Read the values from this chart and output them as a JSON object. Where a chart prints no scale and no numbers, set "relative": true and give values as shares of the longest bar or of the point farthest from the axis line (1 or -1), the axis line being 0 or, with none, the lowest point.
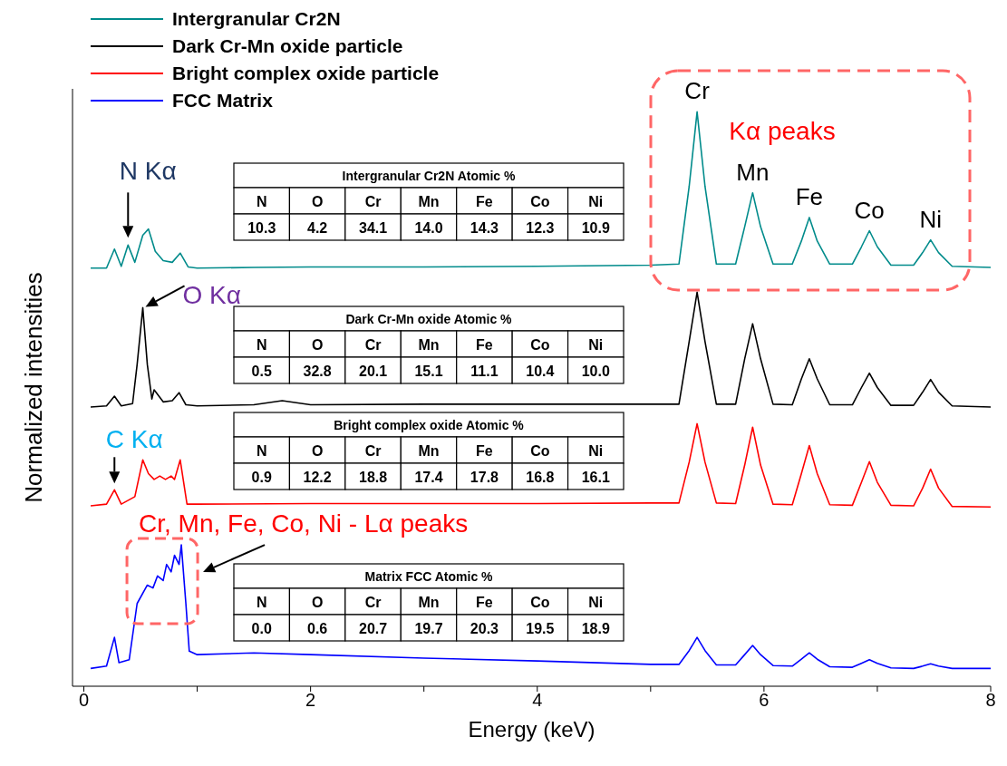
{
  "chart_data": {
    "type": "line",
    "relative": true,
    "xlabel": "Energy (keV)",
    "ylabel": "Normalized intensities",
    "legend": "top left",
    "xlim": [
      -0.1,
      8
    ],
    "xticks": [
      0,
      {
        "value": 1,
        "label": null
      },
      2,
      {
        "value": 3,
        "label": null
      },
      4,
      {
        "value": 5,
        "label": null
      },
      6,
      {
        "value": 7,
        "label": null
      },
      8
    ],
    "series": [
      {
        "name": "Intergranular Cr2N",
        "color": "#008b8b",
        "x": [
          0.06,
          0.2,
          0.27,
          0.33,
          0.39,
          0.45,
          0.52,
          0.57,
          0.63,
          0.7,
          0.78,
          0.85,
          0.92,
          1.0,
          1.5,
          2.0,
          3.0,
          4.0,
          5.0,
          5.25,
          5.34,
          5.41,
          5.48,
          5.58,
          5.75,
          5.83,
          5.9,
          5.97,
          6.08,
          6.25,
          6.33,
          6.4,
          6.47,
          6.58,
          6.78,
          6.86,
          6.93,
          7.0,
          7.12,
          7.32,
          7.4,
          7.47,
          7.54,
          7.66,
          8.0
        ],
        "values": [
          0.728,
          0.728,
          0.761,
          0.731,
          0.768,
          0.738,
          0.785,
          0.796,
          0.757,
          0.741,
          0.738,
          0.754,
          0.73,
          0.728,
          0.729,
          0.73,
          0.73,
          0.731,
          0.733,
          0.735,
          0.87,
          1.0,
          0.87,
          0.735,
          0.735,
          0.8,
          0.859,
          0.8,
          0.735,
          0.735,
          0.775,
          0.816,
          0.775,
          0.735,
          0.735,
          0.765,
          0.793,
          0.765,
          0.733,
          0.733,
          0.755,
          0.777,
          0.755,
          0.731,
          0.729
        ]
      },
      {
        "name": "Dark Cr-Mn oxide particle",
        "color": "#000000",
        "x": [
          0.06,
          0.2,
          0.27,
          0.33,
          0.43,
          0.47,
          0.52,
          0.56,
          0.6,
          0.62,
          0.7,
          0.78,
          0.84,
          0.9,
          1.0,
          1.5,
          1.75,
          2.0,
          3.0,
          4.0,
          5.0,
          5.25,
          5.34,
          5.41,
          5.48,
          5.58,
          5.75,
          5.83,
          5.9,
          5.97,
          6.08,
          6.25,
          6.33,
          6.4,
          6.47,
          6.58,
          6.78,
          6.86,
          6.93,
          7.0,
          7.12,
          7.32,
          7.4,
          7.47,
          7.54,
          7.66,
          8.0
        ],
        "values": [
          0.486,
          0.488,
          0.505,
          0.488,
          0.492,
          0.56,
          0.659,
          0.56,
          0.5,
          0.516,
          0.495,
          0.497,
          0.511,
          0.49,
          0.488,
          0.49,
          0.497,
          0.49,
          0.491,
          0.491,
          0.491,
          0.491,
          0.6,
          0.686,
          0.6,
          0.491,
          0.491,
          0.57,
          0.631,
          0.57,
          0.491,
          0.49,
          0.535,
          0.57,
          0.535,
          0.49,
          0.49,
          0.52,
          0.545,
          0.52,
          0.489,
          0.489,
          0.512,
          0.534,
          0.512,
          0.488,
          0.486
        ]
      },
      {
        "name": "Bright complex oxide particle",
        "color": "#ff0000",
        "x": [
          0.06,
          0.2,
          0.27,
          0.33,
          0.45,
          0.52,
          0.57,
          0.62,
          0.67,
          0.72,
          0.77,
          0.8,
          0.85,
          0.91,
          1.0,
          2.0,
          3.0,
          4.0,
          5.0,
          5.25,
          5.34,
          5.41,
          5.48,
          5.58,
          5.75,
          5.83,
          5.9,
          5.97,
          6.08,
          6.25,
          6.33,
          6.4,
          6.47,
          6.58,
          6.78,
          6.86,
          6.93,
          7.0,
          7.12,
          7.32,
          7.4,
          7.47,
          7.54,
          7.66,
          8.0
        ],
        "values": [
          0.314,
          0.317,
          0.342,
          0.317,
          0.33,
          0.394,
          0.37,
          0.36,
          0.366,
          0.36,
          0.366,
          0.36,
          0.394,
          0.317,
          0.317,
          0.318,
          0.318,
          0.318,
          0.319,
          0.319,
          0.39,
          0.457,
          0.39,
          0.319,
          0.318,
          0.385,
          0.451,
          0.385,
          0.317,
          0.316,
          0.37,
          0.419,
          0.37,
          0.316,
          0.315,
          0.355,
          0.391,
          0.355,
          0.315,
          0.314,
          0.345,
          0.378,
          0.345,
          0.313,
          0.312
        ]
      },
      {
        "name": "FCC Matrix",
        "color": "#0000ff",
        "x": [
          0.06,
          0.2,
          0.27,
          0.31,
          0.4,
          0.47,
          0.56,
          0.61,
          0.65,
          0.7,
          0.73,
          0.77,
          0.8,
          0.84,
          0.86,
          0.9,
          0.93,
          1.0,
          1.5,
          2.0,
          3.0,
          4.0,
          5.0,
          5.25,
          5.34,
          5.41,
          5.48,
          5.58,
          5.75,
          5.83,
          5.9,
          5.97,
          6.08,
          6.25,
          6.33,
          6.4,
          6.47,
          6.58,
          6.78,
          6.86,
          6.93,
          7.0,
          7.12,
          7.32,
          7.4,
          7.47,
          7.54,
          7.66,
          8.0
        ],
        "values": [
          0.031,
          0.035,
          0.085,
          0.041,
          0.046,
          0.144,
          0.176,
          0.171,
          0.192,
          0.184,
          0.212,
          0.199,
          0.228,
          0.212,
          0.246,
          0.144,
          0.061,
          0.055,
          0.058,
          0.055,
          0.049,
          0.044,
          0.038,
          0.038,
          0.062,
          0.085,
          0.062,
          0.037,
          0.037,
          0.055,
          0.071,
          0.055,
          0.036,
          0.035,
          0.047,
          0.058,
          0.047,
          0.034,
          0.033,
          0.04,
          0.046,
          0.04,
          0.032,
          0.031,
          0.035,
          0.039,
          0.035,
          0.031,
          0.031
        ]
      }
    ],
    "annotations": [
      {
        "text": "N Kα",
        "x": 0.39,
        "y": 0.768
      },
      {
        "text": "O Kα",
        "x": 0.52,
        "y": 0.659
      },
      {
        "text": "C Kα",
        "x": 0.27,
        "y": 0.342
      },
      {
        "text": "Cr, Mn, Fe, Co, Ni - Lα peaks",
        "x": 0.86,
        "y": 0.246
      },
      {
        "text": "Cr",
        "x": 5.41,
        "y": 1.0
      },
      {
        "text": "Mn",
        "x": 5.9,
        "y": 0.859
      },
      {
        "text": "Fe",
        "x": 6.4,
        "y": 0.816
      },
      {
        "text": "Co",
        "x": 6.93,
        "y": 0.793
      },
      {
        "text": "Ni",
        "x": 7.47,
        "y": 0.777
      },
      "Kα peaks",
      "Intergranular Cr2N  Atomic %",
      "N",
      "O",
      "Cr",
      "Mn",
      "Fe",
      "Co",
      "Ni",
      "10.3",
      "4.2",
      "34.1",
      "14.0",
      "14.3",
      "12.3",
      "10.9",
      "Dark Cr-Mn oxide Atomic %",
      "N",
      "O",
      "Cr",
      "Mn",
      "Fe",
      "Co",
      "Ni",
      "0.5",
      "32.8",
      "20.1",
      "15.1",
      "11.1",
      "10.4",
      "10.0",
      "Bright complex oxide Atomic %",
      "N",
      "O",
      "Cr",
      "Mn",
      "Fe",
      "Co",
      "Ni",
      "0.9",
      "12.2",
      "18.8",
      "17.4",
      "17.8",
      "16.8",
      "16.1",
      "Matrix FCC Atomic %",
      "N",
      "O",
      "Cr",
      "Mn",
      "Fe",
      "Co",
      "Ni",
      "0.0",
      "0.6",
      "20.7",
      "19.7",
      "20.3",
      "19.5",
      "18.9"
    ]
  }
}
